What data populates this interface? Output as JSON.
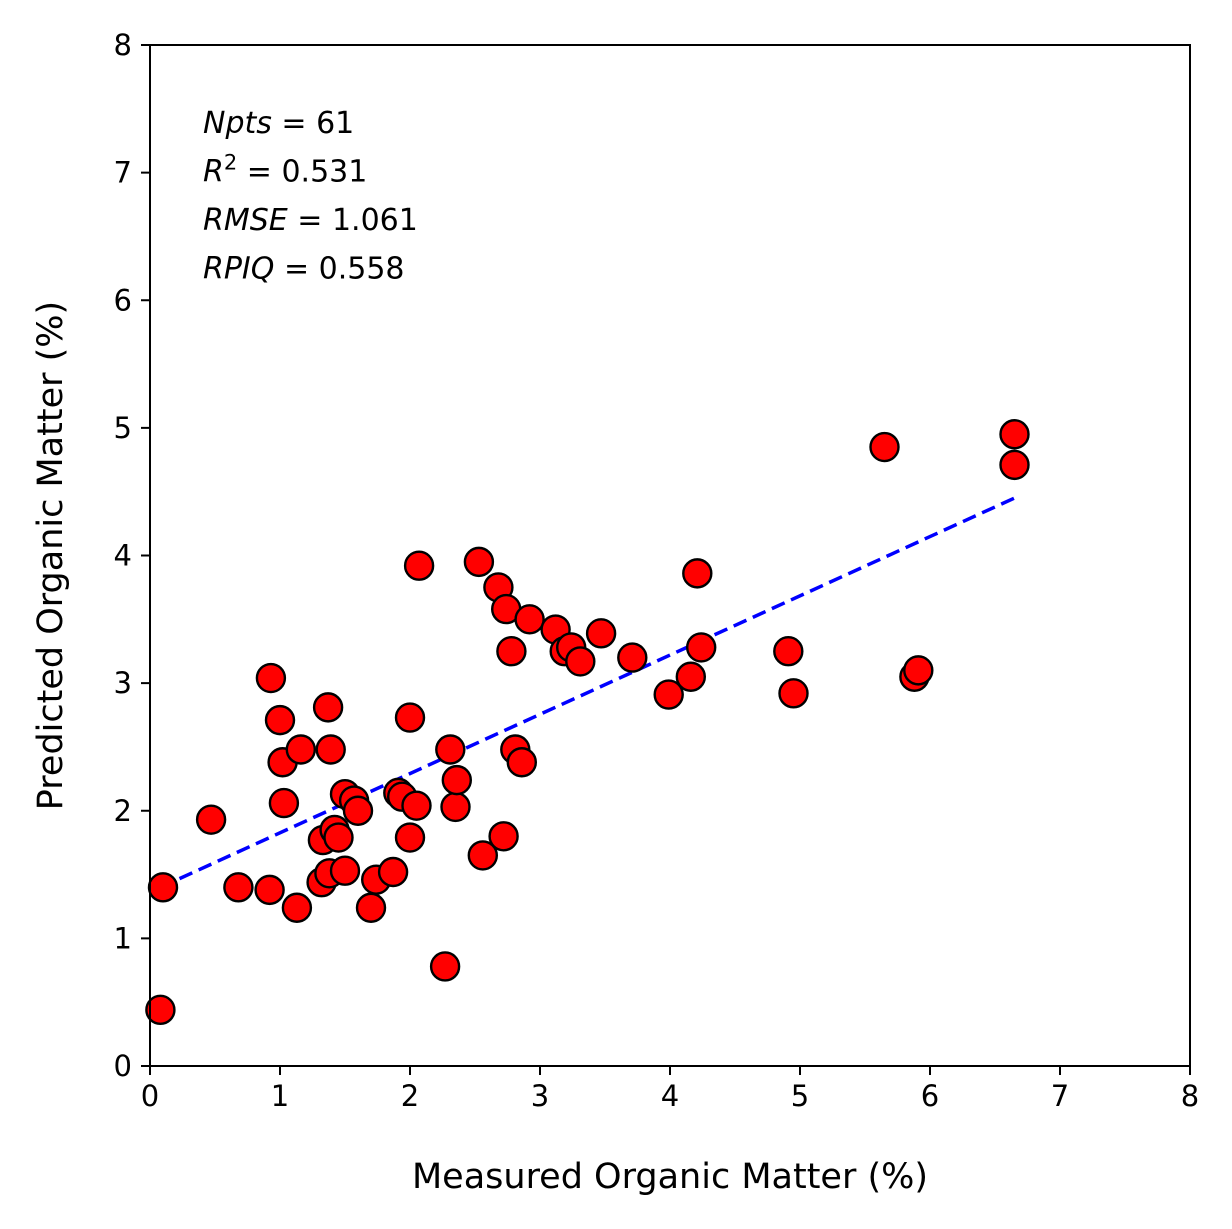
{
  "chart_data": {
    "type": "scatter",
    "xlabel": "Measured Organic Matter (%)",
    "ylabel": "Predicted Organic Matter (%)",
    "xlim": [
      0,
      8
    ],
    "ylim": [
      0,
      8
    ],
    "xticks": [
      "0",
      "1",
      "2",
      "3",
      "4",
      "5",
      "6",
      "7",
      "8"
    ],
    "yticks": [
      "0",
      "1",
      "2",
      "3",
      "4",
      "5",
      "6",
      "7",
      "8"
    ],
    "grid": false,
    "annotations": [
      {
        "name": "Npts",
        "op": " = ",
        "value": "61"
      },
      {
        "name": "R",
        "sup": "2",
        "op": " = ",
        "value": "0.531"
      },
      {
        "name": "RMSE",
        "op": " = ",
        "value": "1.061"
      },
      {
        "name": "RPIQ",
        "op": " = ",
        "value": "0.558"
      }
    ],
    "points": [
      [
        0.08,
        0.44
      ],
      [
        0.1,
        1.4
      ],
      [
        0.47,
        1.93
      ],
      [
        0.68,
        1.4
      ],
      [
        0.92,
        1.38
      ],
      [
        0.93,
        3.04
      ],
      [
        1.0,
        2.71
      ],
      [
        1.02,
        2.38
      ],
      [
        1.03,
        2.06
      ],
      [
        1.13,
        1.24
      ],
      [
        1.16,
        2.48
      ],
      [
        1.32,
        1.44
      ],
      [
        1.33,
        1.77
      ],
      [
        1.37,
        2.81
      ],
      [
        1.39,
        2.48
      ],
      [
        1.38,
        1.51
      ],
      [
        1.42,
        1.85
      ],
      [
        1.45,
        1.79
      ],
      [
        1.5,
        2.13
      ],
      [
        1.5,
        1.53
      ],
      [
        1.57,
        2.08
      ],
      [
        1.6,
        2.0
      ],
      [
        1.7,
        1.24
      ],
      [
        1.74,
        1.46
      ],
      [
        1.87,
        1.52
      ],
      [
        1.91,
        2.14
      ],
      [
        1.94,
        2.11
      ],
      [
        2.0,
        2.73
      ],
      [
        2.0,
        1.79
      ],
      [
        2.07,
        3.92
      ],
      [
        2.27,
        0.78
      ],
      [
        2.31,
        2.48
      ],
      [
        2.35,
        2.03
      ],
      [
        2.36,
        2.24
      ],
      [
        2.53,
        3.95
      ],
      [
        2.56,
        1.65
      ],
      [
        2.68,
        3.75
      ],
      [
        2.72,
        1.8
      ],
      [
        2.74,
        3.58
      ],
      [
        2.78,
        3.25
      ],
      [
        2.81,
        2.48
      ],
      [
        2.86,
        2.38
      ],
      [
        2.92,
        3.5
      ],
      [
        3.12,
        3.42
      ],
      [
        3.19,
        3.25
      ],
      [
        3.24,
        3.28
      ],
      [
        3.31,
        3.17
      ],
      [
        3.47,
        3.39
      ],
      [
        3.71,
        3.2
      ],
      [
        3.99,
        2.91
      ],
      [
        4.16,
        3.05
      ],
      [
        4.21,
        3.86
      ],
      [
        4.24,
        3.28
      ],
      [
        4.91,
        3.25
      ],
      [
        4.95,
        2.92
      ],
      [
        5.65,
        4.85
      ],
      [
        5.88,
        3.05
      ],
      [
        5.91,
        3.1
      ],
      [
        6.65,
        4.95
      ],
      [
        6.65,
        4.71
      ],
      [
        2.05,
        2.04
      ]
    ],
    "fit_line": {
      "x": [
        0.08,
        6.65
      ],
      "y": [
        1.4,
        4.45
      ]
    },
    "colors": {
      "marker_fill": "#ff0000",
      "marker_edge": "#000000",
      "fit_line": "#0000ff",
      "axes": "#000000"
    }
  }
}
